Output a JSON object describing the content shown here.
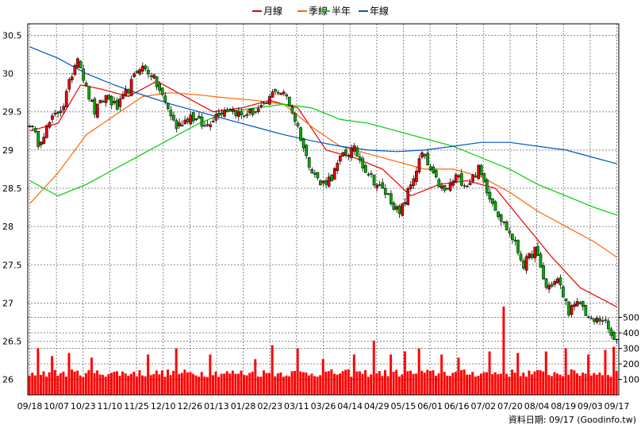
{
  "chart_data": {
    "type": "candlestick",
    "legend": [
      {
        "name": "月線",
        "color": "#e60000"
      },
      {
        "name": "季線",
        "color": "#ff6600"
      },
      {
        "name": "半年",
        "color": "#00cc00"
      },
      {
        "name": "年線",
        "color": "#0055cc"
      }
    ],
    "price_axis": {
      "ylim": [
        25.8,
        30.65
      ],
      "ticks": [
        "30.5",
        "30",
        "29.5",
        "29",
        "28.5",
        "28",
        "27.5",
        "27",
        "26.5",
        "26"
      ]
    },
    "volume_axis": {
      "ylim": [
        0,
        600
      ],
      "ticks": [
        "500",
        "400",
        "300",
        "200",
        "100"
      ]
    },
    "x_labels": [
      "09/18",
      "10/07",
      "10/23",
      "11/10",
      "11/25",
      "12/10",
      "12/26",
      "01/13",
      "01/28",
      "02/23",
      "03/11",
      "03/26",
      "04/14",
      "04/29",
      "05/15",
      "06/01",
      "06/16",
      "07/02",
      "07/20",
      "08/04",
      "08/19",
      "09/03",
      "09/17"
    ],
    "anchors": [
      {
        "i": 0,
        "p": 29.35
      },
      {
        "i": 3,
        "p": 29.1
      },
      {
        "i": 7,
        "p": 29.35
      },
      {
        "i": 12,
        "p": 29.6
      },
      {
        "i": 15,
        "p": 30.0
      },
      {
        "i": 17,
        "p": 30.25
      },
      {
        "i": 20,
        "p": 29.8
      },
      {
        "i": 23,
        "p": 29.5
      },
      {
        "i": 27,
        "p": 29.7
      },
      {
        "i": 31,
        "p": 29.55
      },
      {
        "i": 35,
        "p": 29.8
      },
      {
        "i": 39,
        "p": 30.1
      },
      {
        "i": 43,
        "p": 30.0
      },
      {
        "i": 47,
        "p": 29.7
      },
      {
        "i": 52,
        "p": 29.3
      },
      {
        "i": 57,
        "p": 29.45
      },
      {
        "i": 62,
        "p": 29.3
      },
      {
        "i": 67,
        "p": 29.5
      },
      {
        "i": 71,
        "p": 29.55
      },
      {
        "i": 75,
        "p": 29.45
      },
      {
        "i": 79,
        "p": 29.5
      },
      {
        "i": 83,
        "p": 29.55
      },
      {
        "i": 87,
        "p": 29.8
      },
      {
        "i": 91,
        "p": 29.7
      },
      {
        "i": 95,
        "p": 29.3
      },
      {
        "i": 98,
        "p": 28.9
      },
      {
        "i": 103,
        "p": 28.55
      },
      {
        "i": 107,
        "p": 28.65
      },
      {
        "i": 111,
        "p": 28.95
      },
      {
        "i": 115,
        "p": 29.0
      },
      {
        "i": 119,
        "p": 28.75
      },
      {
        "i": 123,
        "p": 28.55
      },
      {
        "i": 127,
        "p": 28.4
      },
      {
        "i": 131,
        "p": 28.15
      },
      {
        "i": 135,
        "p": 28.55
      },
      {
        "i": 139,
        "p": 28.95
      },
      {
        "i": 143,
        "p": 28.65
      },
      {
        "i": 147,
        "p": 28.45
      },
      {
        "i": 151,
        "p": 28.65
      },
      {
        "i": 155,
        "p": 28.55
      },
      {
        "i": 159,
        "p": 28.75
      },
      {
        "i": 163,
        "p": 28.4
      },
      {
        "i": 167,
        "p": 28.1
      },
      {
        "i": 171,
        "p": 27.85
      },
      {
        "i": 175,
        "p": 27.5
      },
      {
        "i": 179,
        "p": 27.7
      },
      {
        "i": 183,
        "p": 27.2
      },
      {
        "i": 187,
        "p": 27.3
      },
      {
        "i": 191,
        "p": 26.9
      },
      {
        "i": 195,
        "p": 27.0
      },
      {
        "i": 199,
        "p": 26.75
      },
      {
        "i": 203,
        "p": 26.8
      },
      {
        "i": 207,
        "p": 26.5
      },
      {
        "i": 208,
        "p": 26.48
      }
    ],
    "ma_lines": [
      {
        "name": "月線",
        "points": [
          [
            0,
            29.25
          ],
          [
            10,
            29.35
          ],
          [
            18,
            29.85
          ],
          [
            25,
            29.8
          ],
          [
            35,
            29.7
          ],
          [
            45,
            29.9
          ],
          [
            55,
            29.7
          ],
          [
            65,
            29.5
          ],
          [
            75,
            29.55
          ],
          [
            85,
            29.65
          ],
          [
            95,
            29.55
          ],
          [
            105,
            29.0
          ],
          [
            115,
            28.9
          ],
          [
            125,
            28.75
          ],
          [
            135,
            28.4
          ],
          [
            145,
            28.55
          ],
          [
            155,
            28.6
          ],
          [
            165,
            28.5
          ],
          [
            175,
            28.05
          ],
          [
            185,
            27.6
          ],
          [
            195,
            27.2
          ],
          [
            208,
            26.95
          ]
        ]
      },
      {
        "name": "季線",
        "points": [
          [
            0,
            28.3
          ],
          [
            10,
            28.7
          ],
          [
            20,
            29.2
          ],
          [
            30,
            29.45
          ],
          [
            40,
            29.7
          ],
          [
            50,
            29.75
          ],
          [
            60,
            29.72
          ],
          [
            70,
            29.68
          ],
          [
            80,
            29.65
          ],
          [
            90,
            29.6
          ],
          [
            100,
            29.3
          ],
          [
            110,
            29.05
          ],
          [
            120,
            28.95
          ],
          [
            130,
            28.85
          ],
          [
            140,
            28.75
          ],
          [
            150,
            28.75
          ],
          [
            160,
            28.65
          ],
          [
            170,
            28.45
          ],
          [
            180,
            28.2
          ],
          [
            190,
            28.0
          ],
          [
            200,
            27.8
          ],
          [
            208,
            27.6
          ]
        ]
      },
      {
        "name": "半年",
        "points": [
          [
            0,
            28.6
          ],
          [
            10,
            28.4
          ],
          [
            20,
            28.55
          ],
          [
            30,
            28.75
          ],
          [
            40,
            28.95
          ],
          [
            50,
            29.15
          ],
          [
            60,
            29.35
          ],
          [
            70,
            29.5
          ],
          [
            80,
            29.55
          ],
          [
            90,
            29.6
          ],
          [
            100,
            29.55
          ],
          [
            110,
            29.4
          ],
          [
            120,
            29.35
          ],
          [
            130,
            29.25
          ],
          [
            140,
            29.15
          ],
          [
            150,
            29.05
          ],
          [
            160,
            28.9
          ],
          [
            170,
            28.75
          ],
          [
            180,
            28.55
          ],
          [
            190,
            28.4
          ],
          [
            200,
            28.25
          ],
          [
            208,
            28.15
          ]
        ]
      },
      {
        "name": "年線",
        "points": [
          [
            0,
            30.35
          ],
          [
            10,
            30.2
          ],
          [
            20,
            30.0
          ],
          [
            30,
            29.85
          ],
          [
            40,
            29.72
          ],
          [
            50,
            29.6
          ],
          [
            60,
            29.5
          ],
          [
            70,
            29.4
          ],
          [
            80,
            29.3
          ],
          [
            90,
            29.2
          ],
          [
            100,
            29.12
          ],
          [
            110,
            29.05
          ],
          [
            120,
            29.0
          ],
          [
            130,
            28.98
          ],
          [
            140,
            29.0
          ],
          [
            150,
            29.05
          ],
          [
            160,
            29.1
          ],
          [
            170,
            29.1
          ],
          [
            180,
            29.05
          ],
          [
            190,
            29.0
          ],
          [
            200,
            28.9
          ],
          [
            208,
            28.82
          ]
        ]
      }
    ],
    "volume_spikes": [
      {
        "i": 3,
        "v": 300
      },
      {
        "i": 8,
        "v": 250
      },
      {
        "i": 14,
        "v": 270
      },
      {
        "i": 22,
        "v": 240
      },
      {
        "i": 42,
        "v": 260
      },
      {
        "i": 52,
        "v": 300
      },
      {
        "i": 64,
        "v": 260
      },
      {
        "i": 80,
        "v": 230
      },
      {
        "i": 86,
        "v": 320
      },
      {
        "i": 95,
        "v": 300
      },
      {
        "i": 104,
        "v": 230
      },
      {
        "i": 115,
        "v": 260
      },
      {
        "i": 122,
        "v": 350
      },
      {
        "i": 128,
        "v": 260
      },
      {
        "i": 133,
        "v": 280
      },
      {
        "i": 138,
        "v": 300
      },
      {
        "i": 146,
        "v": 260
      },
      {
        "i": 152,
        "v": 240
      },
      {
        "i": 163,
        "v": 280
      },
      {
        "i": 168,
        "v": 570
      },
      {
        "i": 173,
        "v": 270
      },
      {
        "i": 183,
        "v": 280
      },
      {
        "i": 190,
        "v": 300
      },
      {
        "i": 198,
        "v": 260
      },
      {
        "i": 204,
        "v": 290
      },
      {
        "i": 207,
        "v": 310
      }
    ],
    "volume_base": 140,
    "footer": "資料日期: 09/17  (Goodinfo.tw)"
  }
}
